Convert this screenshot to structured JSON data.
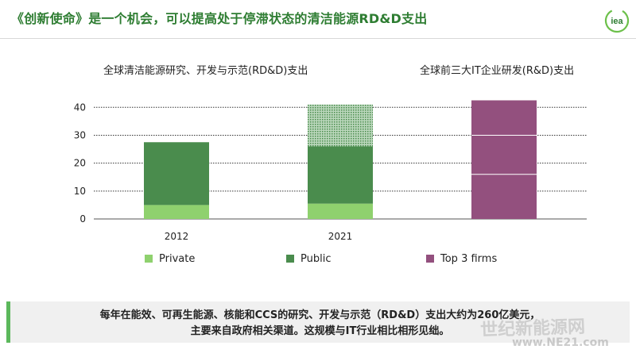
{
  "slide": {
    "title": "《创新使命》是一个机会，可以提高处于停滞状态的清洁能源RD&D支出",
    "logo_text": "iea",
    "subtitle_left": "全球清洁能源研究、开发与示范(RD&D)支出",
    "subtitle_right": "全球前三大IT企业研发(R&D)支出",
    "note_line1": "每年在能效、可再生能源、核能和CCS的研究、开发与示范（RD&D）支出大约为260亿美元，",
    "note_line2": "主要来自政府相关渠道。这规模与IT行业相比相形见绌。",
    "watermark_cn": "世纪新能源网",
    "watermark_url": "www.NE21.com"
  },
  "colors": {
    "private": "#8fd16e",
    "public": "#4a8c4d",
    "public_extra": "#9dc39e",
    "top3": "#93507e",
    "accent_green": "#2e7d32"
  },
  "chart_data": {
    "type": "bar",
    "stacked": true,
    "categories": [
      "2012",
      "2021",
      ""
    ],
    "series": [
      {
        "name": "Private",
        "values": [
          5,
          5.5,
          0
        ]
      },
      {
        "name": "Public",
        "values": [
          22.5,
          20.5,
          0
        ]
      },
      {
        "name": "",
        "values": [
          0,
          15,
          0
        ],
        "pattern": "dotted"
      },
      {
        "name": "Top 3 firms",
        "values": [
          0,
          0,
          42.5
        ],
        "segment_lines": [
          16,
          30
        ]
      }
    ],
    "yticks": [
      0,
      10,
      20,
      30,
      40
    ],
    "ylim": [
      0,
      40
    ],
    "grid": true,
    "legend_position": "bottom"
  }
}
